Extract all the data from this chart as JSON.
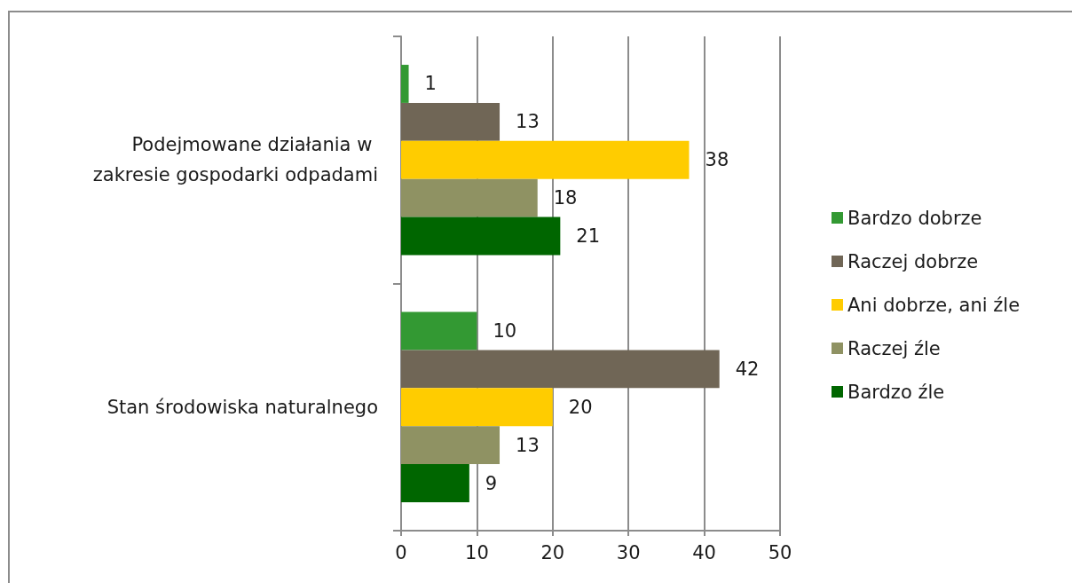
{
  "chart_data": {
    "type": "bar",
    "orientation": "horizontal",
    "categories": [
      "Podejmowane działania w zakresie gospodarki odpadami",
      "Stan środowiska naturalnego"
    ],
    "series": [
      {
        "name": "Bardzo dobrze",
        "color": "#339933",
        "values": [
          1,
          10
        ]
      },
      {
        "name": "Raczej dobrze",
        "color": "#706656",
        "values": [
          13,
          42
        ]
      },
      {
        "name": "Ani dobrze, ani źle",
        "color": "#ffcc00",
        "values": [
          38,
          20
        ]
      },
      {
        "name": "Raczej źle",
        "color": "#8f9263",
        "values": [
          18,
          13
        ]
      },
      {
        "name": "Bardzo źle",
        "color": "#006600",
        "values": [
          21,
          9
        ]
      }
    ],
    "xlim": [
      0,
      50
    ],
    "xticks": [
      0,
      10,
      20,
      30,
      40,
      50
    ],
    "grid": "x",
    "legend": "right",
    "data_labels": true
  }
}
